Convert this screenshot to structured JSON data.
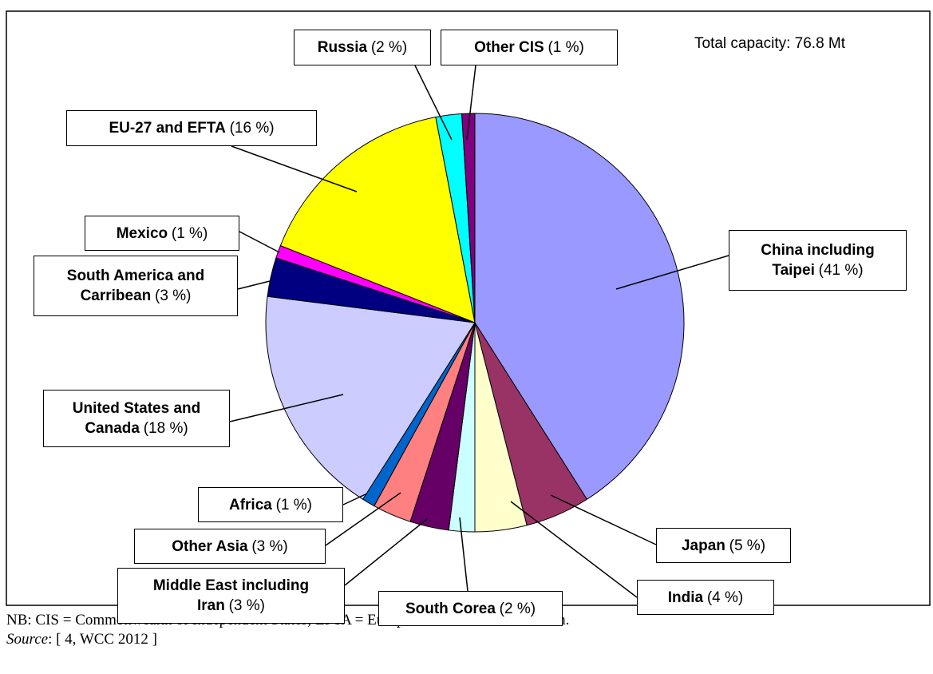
{
  "chart_data": {
    "type": "pie",
    "annotation": "Total capacity: 76.8 Mt",
    "categories": [
      "China including Taipei",
      "Japan",
      "India",
      "South Corea",
      "Middle East including Iran",
      "Other Asia",
      "Africa",
      "United States and Canada",
      "South America and Carribean",
      "Mexico",
      "EU-27 and EFTA",
      "Russia",
      "Other CIS"
    ],
    "values": [
      41,
      5,
      4,
      2,
      3,
      3,
      1,
      18,
      3,
      1,
      16,
      2,
      1
    ],
    "value_labels": [
      "(41 %)",
      "(5 %)",
      "(4 %)",
      "(2 %)",
      "(3 %)",
      "(3 %)",
      "(1 %)",
      "(18 %)",
      "(3 %)",
      "(1 %)",
      "(16 %)",
      "(2 %)",
      "(1 %)"
    ],
    "colors": [
      "#9999ff",
      "#993366",
      "#ffffcc",
      "#ccffff",
      "#660066",
      "#ff8080",
      "#0066cc",
      "#ccccff",
      "#000080",
      "#ff00ff",
      "#ffff00",
      "#00ffff",
      "#800080"
    ],
    "note": "NB: CIS = Commonwealth of Independent States; EFTA = European free Trade Association.",
    "source_label": "Source",
    "source": ": [ 4, WCC 2012 ]"
  }
}
